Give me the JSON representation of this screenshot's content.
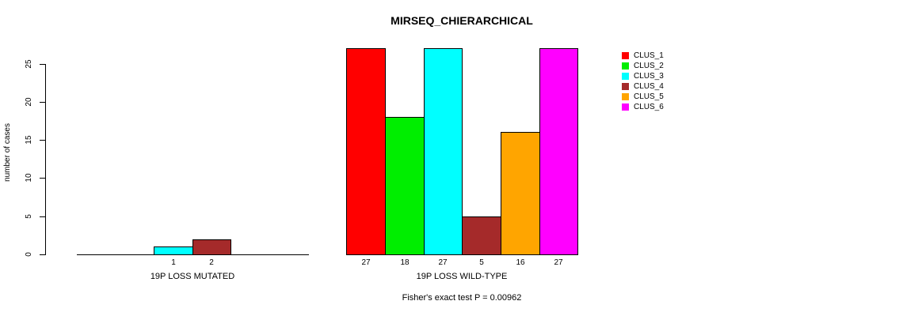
{
  "chart_data": {
    "type": "bar",
    "title": "MIRSEQ_CHIERARCHICAL",
    "xlabel": "",
    "ylabel": "number of cases",
    "ylim": [
      0,
      27
    ],
    "yticks": [
      0,
      5,
      10,
      15,
      20,
      25
    ],
    "grid": false,
    "legend": {
      "position": "right-outside",
      "entries": [
        {
          "label": "CLUS_1",
          "color": "#FF0000"
        },
        {
          "label": "CLUS_2",
          "color": "#00EE00"
        },
        {
          "label": "CLUS_3",
          "color": "#00FFFF"
        },
        {
          "label": "CLUS_4",
          "color": "#A52A2A"
        },
        {
          "label": "CLUS_5",
          "color": "#FFA500"
        },
        {
          "label": "CLUS_6",
          "color": "#FF00FF"
        }
      ]
    },
    "groups": [
      {
        "label": "19P LOSS MUTATED",
        "values": [
          0,
          0,
          1,
          2,
          0,
          0
        ],
        "bar_labels": [
          "",
          "",
          "1",
          "2",
          "",
          ""
        ]
      },
      {
        "label": "19P LOSS WILD-TYPE",
        "values": [
          27,
          18,
          27,
          5,
          16,
          27
        ],
        "bar_labels": [
          "27",
          "18",
          "27",
          "5",
          "16",
          "27"
        ]
      }
    ],
    "annotation": "Fisher's exact test P = 0.00962",
    "axis_color": "#000000",
    "background_color": "#FFFFFF"
  }
}
